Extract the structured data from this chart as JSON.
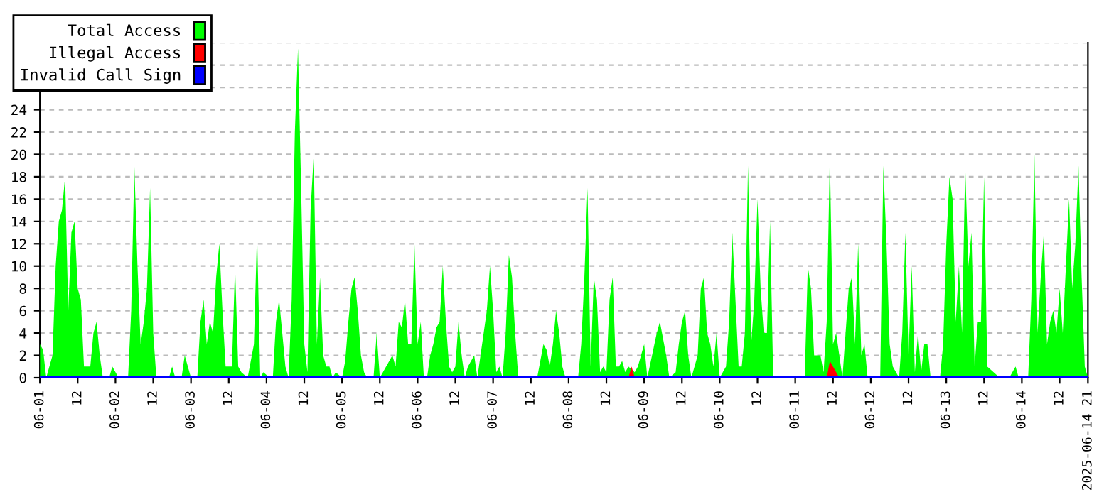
{
  "chart_data": {
    "type": "area",
    "series": [
      {
        "name": "Total Access",
        "color": "#00ff00",
        "x": [
          "2025-06-01T00:00",
          "2025-06-01T01:00",
          "2025-06-01T02:00",
          "2025-06-01T04:00",
          "2025-06-01T05:00",
          "2025-06-01T06:00",
          "2025-06-01T07:00",
          "2025-06-01T08:00",
          "2025-06-01T09:00",
          "2025-06-01T10:00",
          "2025-06-01T11:00",
          "2025-06-01T12:00",
          "2025-06-01T13:00",
          "2025-06-01T14:00",
          "2025-06-01T16:00",
          "2025-06-01T17:00",
          "2025-06-01T18:00",
          "2025-06-01T19:00",
          "2025-06-01T20:00",
          "2025-06-01T22:00",
          "2025-06-01T23:00",
          "2025-06-02T01:00",
          "2025-06-02T04:00",
          "2025-06-02T05:00",
          "2025-06-02T06:00",
          "2025-06-02T07:00",
          "2025-06-02T08:00",
          "2025-06-02T09:00",
          "2025-06-02T10:00",
          "2025-06-02T11:00",
          "2025-06-02T12:00",
          "2025-06-02T13:00",
          "2025-06-02T17:00",
          "2025-06-02T18:00",
          "2025-06-02T19:00",
          "2025-06-02T21:00",
          "2025-06-02T22:00",
          "2025-06-02T23:00",
          "2025-06-03T00:00",
          "2025-06-03T02:00",
          "2025-06-03T03:00",
          "2025-06-03T04:00",
          "2025-06-03T05:00",
          "2025-06-03T06:00",
          "2025-06-03T07:00",
          "2025-06-03T08:00",
          "2025-06-03T09:00",
          "2025-06-03T10:00",
          "2025-06-03T11:00",
          "2025-06-03T13:00",
          "2025-06-03T14:00",
          "2025-06-03T15:00",
          "2025-06-03T16:00",
          "2025-06-03T18:00",
          "2025-06-03T20:00",
          "2025-06-03T21:00",
          "2025-06-03T22:00",
          "2025-06-03T23:00",
          "2025-06-04T01:00",
          "2025-06-04T02:00",
          "2025-06-04T03:00",
          "2025-06-04T04:00",
          "2025-06-04T05:00",
          "2025-06-04T06:00",
          "2025-06-04T07:00",
          "2025-06-04T08:00",
          "2025-06-04T09:00",
          "2025-06-04T10:00",
          "2025-06-04T11:00",
          "2025-06-04T12:00",
          "2025-06-04T13:00",
          "2025-06-04T14:00",
          "2025-06-04T15:00",
          "2025-06-04T16:00",
          "2025-06-04T17:00",
          "2025-06-04T18:00",
          "2025-06-04T19:00",
          "2025-06-04T20:00",
          "2025-06-04T21:00",
          "2025-06-04T22:00",
          "2025-06-05T00:00",
          "2025-06-05T01:00",
          "2025-06-05T02:00",
          "2025-06-05T03:00",
          "2025-06-05T04:00",
          "2025-06-05T05:00",
          "2025-06-05T06:00",
          "2025-06-05T07:00",
          "2025-06-05T08:00",
          "2025-06-05T10:00",
          "2025-06-05T11:00",
          "2025-06-05T12:00",
          "2025-06-05T14:00",
          "2025-06-05T16:00",
          "2025-06-05T17:00",
          "2025-06-05T18:00",
          "2025-06-05T19:00",
          "2025-06-05T20:00",
          "2025-06-05T21:00",
          "2025-06-05T22:00",
          "2025-06-05T23:00",
          "2025-06-06T00:00",
          "2025-06-06T01:00",
          "2025-06-06T02:00",
          "2025-06-06T03:00",
          "2025-06-06T04:00",
          "2025-06-06T05:00",
          "2025-06-06T06:00",
          "2025-06-06T07:00",
          "2025-06-06T08:00",
          "2025-06-06T09:00",
          "2025-06-06T10:00",
          "2025-06-06T11:00",
          "2025-06-06T12:00",
          "2025-06-06T13:00",
          "2025-06-06T14:00",
          "2025-06-06T15:00",
          "2025-06-06T16:00",
          "2025-06-06T18:00",
          "2025-06-06T19:00",
          "2025-06-06T21:00",
          "2025-06-06T22:00",
          "2025-06-06T23:00",
          "2025-06-07T00:00",
          "2025-06-07T01:00",
          "2025-06-07T02:00",
          "2025-06-07T03:00",
          "2025-06-07T04:00",
          "2025-06-07T05:00",
          "2025-06-07T06:00",
          "2025-06-07T07:00",
          "2025-06-07T08:00",
          "2025-06-07T14:00",
          "2025-06-07T16:00",
          "2025-06-07T17:00",
          "2025-06-07T18:00",
          "2025-06-07T19:00",
          "2025-06-07T20:00",
          "2025-06-07T21:00",
          "2025-06-07T22:00",
          "2025-06-07T23:00",
          "2025-06-08T03:00",
          "2025-06-08T04:00",
          "2025-06-08T05:00",
          "2025-06-08T06:00",
          "2025-06-08T07:00",
          "2025-06-08T08:00",
          "2025-06-08T09:00",
          "2025-06-08T10:00",
          "2025-06-08T11:00",
          "2025-06-08T12:00",
          "2025-06-08T13:00",
          "2025-06-08T14:00",
          "2025-06-08T15:00",
          "2025-06-08T16:00",
          "2025-06-08T17:00",
          "2025-06-08T18:00",
          "2025-06-08T19:00",
          "2025-06-08T21:00",
          "2025-06-08T22:00",
          "2025-06-09T00:00",
          "2025-06-09T01:00",
          "2025-06-09T04:00",
          "2025-06-09T05:00",
          "2025-06-09T07:00",
          "2025-06-09T08:00",
          "2025-06-09T10:00",
          "2025-06-09T11:00",
          "2025-06-09T12:00",
          "2025-06-09T13:00",
          "2025-06-09T14:00",
          "2025-06-09T15:00",
          "2025-06-09T17:00",
          "2025-06-09T18:00",
          "2025-06-09T19:00",
          "2025-06-09T20:00",
          "2025-06-09T21:00",
          "2025-06-09T22:00",
          "2025-06-09T23:00",
          "2025-06-10T00:00",
          "2025-06-10T02:00",
          "2025-06-10T03:00",
          "2025-06-10T04:00",
          "2025-06-10T05:00",
          "2025-06-10T06:00",
          "2025-06-10T07:00",
          "2025-06-10T08:00",
          "2025-06-10T09:00",
          "2025-06-10T10:00",
          "2025-06-10T11:00",
          "2025-06-10T12:00",
          "2025-06-10T13:00",
          "2025-06-10T14:00",
          "2025-06-10T15:00",
          "2025-06-10T16:00",
          "2025-06-10T17:00",
          "2025-06-11T03:00",
          "2025-06-11T04:00",
          "2025-06-11T05:00",
          "2025-06-11T06:00",
          "2025-06-11T08:00",
          "2025-06-11T09:00",
          "2025-06-11T10:00",
          "2025-06-11T11:00",
          "2025-06-11T12:00",
          "2025-06-11T13:00",
          "2025-06-11T14:00",
          "2025-06-11T15:00",
          "2025-06-11T16:00",
          "2025-06-11T17:00",
          "2025-06-11T18:00",
          "2025-06-11T19:00",
          "2025-06-11T20:00",
          "2025-06-11T21:00",
          "2025-06-11T22:00",
          "2025-06-11T23:00",
          "2025-06-12T03:00",
          "2025-06-12T04:00",
          "2025-06-12T05:00",
          "2025-06-12T06:00",
          "2025-06-12T07:00",
          "2025-06-12T09:00",
          "2025-06-12T10:00",
          "2025-06-12T11:00",
          "2025-06-12T12:00",
          "2025-06-12T13:00",
          "2025-06-12T14:00",
          "2025-06-12T15:00",
          "2025-06-12T16:00",
          "2025-06-12T17:00",
          "2025-06-12T18:00",
          "2025-06-12T19:00",
          "2025-06-12T22:00",
          "2025-06-12T23:00",
          "2025-06-13T00:00",
          "2025-06-13T01:00",
          "2025-06-13T02:00",
          "2025-06-13T03:00",
          "2025-06-13T04:00",
          "2025-06-13T05:00",
          "2025-06-13T06:00",
          "2025-06-13T07:00",
          "2025-06-13T08:00",
          "2025-06-13T09:00",
          "2025-06-13T10:00",
          "2025-06-13T11:00",
          "2025-06-13T12:00",
          "2025-06-13T13:00",
          "2025-06-13T17:00",
          "2025-06-13T20:00",
          "2025-06-13T22:00",
          "2025-06-13T23:00",
          "2025-06-14T02:00",
          "2025-06-14T03:00",
          "2025-06-14T04:00",
          "2025-06-14T05:00",
          "2025-06-14T06:00",
          "2025-06-14T07:00",
          "2025-06-14T08:00",
          "2025-06-14T09:00",
          "2025-06-14T10:00",
          "2025-06-14T11:00",
          "2025-06-14T12:00",
          "2025-06-14T13:00",
          "2025-06-14T14:00",
          "2025-06-14T15:00",
          "2025-06-14T16:00",
          "2025-06-14T17:00",
          "2025-06-14T18:00",
          "2025-06-14T19:00",
          "2025-06-14T20:00",
          "2025-06-14T21:00"
        ],
        "values": [
          3,
          2.5,
          0,
          2,
          10,
          14,
          15,
          18,
          6,
          13,
          14,
          8,
          7,
          1,
          1,
          4,
          5,
          2,
          0,
          0,
          1,
          0,
          0,
          6,
          19,
          10,
          3,
          5,
          8,
          17,
          4,
          0,
          0,
          1,
          0,
          0,
          2,
          1,
          0,
          0,
          5,
          7,
          3,
          5,
          4,
          9,
          12,
          6,
          1,
          1,
          10,
          1,
          0.5,
          0,
          3,
          13,
          0,
          0.5,
          0,
          0,
          5,
          7,
          4,
          1,
          0,
          7,
          22,
          29.5,
          17,
          3,
          0.5,
          15,
          20,
          3,
          9,
          2,
          1,
          1,
          0,
          0.5,
          0,
          1.5,
          5,
          8,
          9,
          6,
          2,
          0.5,
          0,
          0,
          4,
          0,
          1,
          2,
          1,
          5,
          4.5,
          7,
          3,
          3,
          12,
          3,
          5,
          0,
          0,
          2,
          3,
          4.5,
          5,
          10,
          5,
          1,
          0.5,
          1,
          5,
          2,
          0,
          1,
          2,
          0,
          4,
          6,
          10,
          6,
          0.5,
          1,
          0,
          4,
          11,
          9,
          4,
          0,
          0,
          3,
          2.5,
          1,
          3,
          6,
          4,
          1,
          0,
          0,
          3,
          9,
          17,
          1,
          9,
          7,
          0.5,
          1,
          0.5,
          7,
          9,
          1,
          1,
          1.5,
          0.5,
          1,
          0.5,
          1,
          3,
          0,
          4,
          5,
          2,
          0,
          0.5,
          3,
          5,
          6,
          2,
          0,
          2,
          8,
          9,
          4,
          3,
          1,
          4,
          0,
          1,
          5,
          13,
          7,
          1,
          1,
          4,
          19,
          3,
          7,
          16,
          8,
          4,
          4,
          14,
          0,
          0,
          10,
          8,
          2,
          2,
          0.5,
          5,
          20,
          3,
          4,
          2,
          0,
          4,
          8,
          9,
          3,
          12,
          2,
          3,
          0,
          0,
          19,
          12,
          3,
          1,
          0,
          4,
          13,
          2,
          10,
          0.5,
          4,
          0.5,
          3,
          3,
          0,
          0,
          3,
          12,
          18,
          16,
          5,
          10,
          4,
          19,
          10,
          13,
          1,
          5,
          5,
          18,
          1,
          0,
          0,
          1,
          0,
          0,
          7,
          20,
          4,
          9,
          13,
          3,
          5,
          6,
          4,
          8,
          4,
          10,
          16,
          8,
          12,
          19,
          9,
          1,
          0
        ]
      },
      {
        "name": "Illegal Access",
        "color": "#ff0000",
        "x": [
          "2025-06-01T00:00",
          "2025-06-08T19:00",
          "2025-06-08T20:00",
          "2025-06-08T21:00",
          "2025-06-11T10:00",
          "2025-06-11T11:00",
          "2025-06-11T12:00",
          "2025-06-11T13:00",
          "2025-06-11T14:00",
          "2025-06-14T21:00"
        ],
        "values": [
          0,
          0,
          1,
          0,
          0,
          1.5,
          1,
          0.5,
          0,
          0
        ]
      },
      {
        "name": "Invalid Call Sign",
        "type": "line",
        "color": "#0000ff",
        "x": [
          "2025-06-01T00:00",
          "2025-06-14T21:00"
        ],
        "values": [
          0,
          0
        ]
      }
    ],
    "xlim": [
      "2025-06-01T00:00",
      "2025-06-14T21:00"
    ],
    "xticks": [
      {
        "value": "2025-06-01T00:00",
        "label": "06-01"
      },
      {
        "value": "2025-06-01T12:00",
        "label": "12"
      },
      {
        "value": "2025-06-02T00:00",
        "label": "06-02"
      },
      {
        "value": "2025-06-02T12:00",
        "label": "12"
      },
      {
        "value": "2025-06-03T00:00",
        "label": "06-03"
      },
      {
        "value": "2025-06-03T12:00",
        "label": "12"
      },
      {
        "value": "2025-06-04T00:00",
        "label": "06-04"
      },
      {
        "value": "2025-06-04T12:00",
        "label": "12"
      },
      {
        "value": "2025-06-05T00:00",
        "label": "06-05"
      },
      {
        "value": "2025-06-05T12:00",
        "label": "12"
      },
      {
        "value": "2025-06-06T00:00",
        "label": "06-06"
      },
      {
        "value": "2025-06-06T12:00",
        "label": "12"
      },
      {
        "value": "2025-06-07T00:00",
        "label": "06-07"
      },
      {
        "value": "2025-06-07T12:00",
        "label": "12"
      },
      {
        "value": "2025-06-08T00:00",
        "label": "06-08"
      },
      {
        "value": "2025-06-08T12:00",
        "label": "12"
      },
      {
        "value": "2025-06-09T00:00",
        "label": "06-09"
      },
      {
        "value": "2025-06-09T12:00",
        "label": "12"
      },
      {
        "value": "2025-06-10T00:00",
        "label": "06-10"
      },
      {
        "value": "2025-06-10T12:00",
        "label": "12"
      },
      {
        "value": "2025-06-11T00:00",
        "label": "06-11"
      },
      {
        "value": "2025-06-11T12:00",
        "label": "12"
      },
      {
        "value": "2025-06-12T00:00",
        "label": "06-12"
      },
      {
        "value": "2025-06-12T12:00",
        "label": "12"
      },
      {
        "value": "2025-06-13T00:00",
        "label": "06-13"
      },
      {
        "value": "2025-06-13T12:00",
        "label": "12"
      },
      {
        "value": "2025-06-14T00:00",
        "label": "06-14"
      },
      {
        "value": "2025-06-14T12:00",
        "label": "12"
      },
      {
        "value": "2025-06-14T21:00",
        "label": "2025-06-14 21"
      }
    ],
    "ylim": [
      0,
      30
    ],
    "yticks": [
      0,
      2,
      4,
      6,
      8,
      10,
      12,
      14,
      16,
      18,
      20,
      22,
      24,
      {
        "value": 26,
        "label": null
      },
      {
        "value": 28,
        "label": null
      },
      {
        "value": 30,
        "label": null
      }
    ],
    "grid": "y",
    "legend": "top left"
  }
}
